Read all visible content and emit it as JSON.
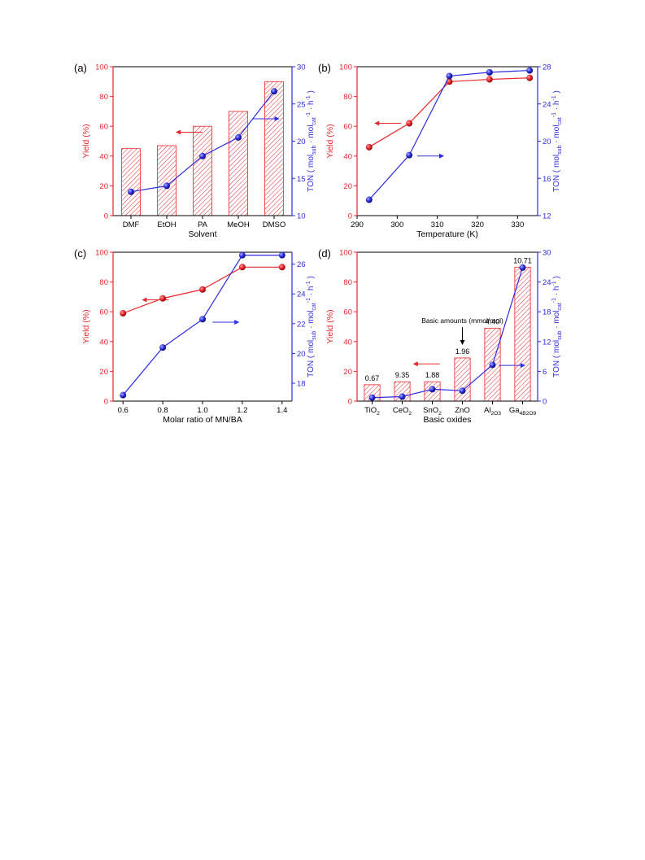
{
  "colors": {
    "yield": "#e8262b",
    "ton": "#2d2de0",
    "axis": "#000000",
    "bar": "#e8262b",
    "background": "#ffffff"
  },
  "chart_data": [
    {
      "panel": "a",
      "type": "bar",
      "panel_label": "(a)",
      "xlabel": "Solvent",
      "ylabel": "Yield (%)",
      "y2label": "TON ( mol_sub · mol_cat^-1 · h^-1 )",
      "categories": [
        "DMF",
        "EtOH",
        "PA",
        "MeOH",
        "DMSO"
      ],
      "ylim": [
        0,
        100
      ],
      "yticks": [
        0,
        20,
        40,
        60,
        80,
        100
      ],
      "y2lim": [
        10,
        30
      ],
      "y2ticks": [
        10,
        15,
        20,
        25,
        30
      ],
      "series": [
        {
          "axis": "left",
          "kind": "bar",
          "values": [
            45,
            47,
            60,
            70,
            90
          ]
        },
        {
          "axis": "right",
          "kind": "line",
          "values": [
            13.2,
            14.0,
            18.0,
            20.5,
            26.7
          ]
        }
      ],
      "arrows": [
        {
          "direction": "left",
          "at_x": 2.0,
          "at_y_axis": "left",
          "at_y": 56
        },
        {
          "direction": "right",
          "at_x": 3.4,
          "at_y_axis": "left",
          "at_y": 65
        }
      ]
    },
    {
      "panel": "b",
      "type": "line",
      "panel_label": "(b)",
      "xlabel": "Temperature (K)",
      "ylabel": "Yield (%)",
      "y2label": "TON ( mol_sub · mol_cat^-1 · h^-1 )",
      "xlim": [
        290,
        335
      ],
      "xticks": [
        290,
        300,
        310,
        320,
        330
      ],
      "ylim": [
        0,
        100
      ],
      "yticks": [
        0,
        20,
        40,
        60,
        80,
        100
      ],
      "y2lim": [
        12,
        28
      ],
      "y2ticks": [
        12,
        16,
        20,
        24,
        28
      ],
      "series": [
        {
          "axis": "left",
          "x": [
            293,
            303,
            313,
            323,
            333
          ],
          "values": [
            46,
            62,
            90,
            91.5,
            92.5
          ]
        },
        {
          "axis": "right",
          "x": [
            293,
            303,
            313,
            323,
            333
          ],
          "values": [
            13.7,
            18.5,
            27.0,
            27.4,
            27.6
          ]
        }
      ],
      "arrows": [
        {
          "direction": "left",
          "at_x": 301,
          "at_y_axis": "left",
          "at_y": 62
        },
        {
          "direction": "right",
          "at_x": 305,
          "at_y_axis": "left",
          "at_y": 40
        }
      ]
    },
    {
      "panel": "c",
      "type": "line",
      "panel_label": "(c)",
      "xlabel": "Molar ratio of MN/BA",
      "ylabel": "Yield (%)",
      "y2label": "TON ( mol_sub · mol_cat^-1 · h^-1 )",
      "xlim": [
        0.55,
        1.45
      ],
      "xticks": [
        "0.6",
        "0.8",
        "1.0",
        "1.2",
        "1.4"
      ],
      "ylim": [
        0,
        100
      ],
      "yticks": [
        0,
        20,
        40,
        60,
        80,
        100
      ],
      "y2lim": [
        16.8,
        26.8
      ],
      "y2ticks": [
        18,
        20,
        22,
        24,
        26
      ],
      "series": [
        {
          "axis": "left",
          "x": [
            0.6,
            0.8,
            1.0,
            1.2,
            1.4
          ],
          "values": [
            59,
            69,
            75,
            90,
            90
          ]
        },
        {
          "axis": "right",
          "x": [
            0.6,
            0.8,
            1.0,
            1.2,
            1.4
          ],
          "values": [
            17.2,
            20.4,
            22.3,
            26.6,
            26.6
          ]
        }
      ],
      "arrows": [
        {
          "direction": "left",
          "at_x": 0.83,
          "at_y_axis": "left",
          "at_y": 68
        },
        {
          "direction": "right",
          "at_x": 1.05,
          "at_y_axis": "left",
          "at_y": 53
        }
      ]
    },
    {
      "panel": "d",
      "type": "bar",
      "panel_label": "(d)",
      "xlabel": "Basic oxides",
      "ylabel": "Yield (%)",
      "y2label": "TON ( mol_sub · mol_cat^-1 · h^-1 )",
      "categories": [
        "TiO_2",
        "CeO_2",
        "SnO_2",
        "ZnO",
        "Al_2O_3",
        "Ga_4B_2O_9"
      ],
      "ylim": [
        0,
        100
      ],
      "yticks": [
        0,
        20,
        40,
        60,
        80,
        100
      ],
      "y2lim": [
        0,
        30
      ],
      "y2ticks": [
        0,
        6,
        12,
        18,
        24,
        30
      ],
      "series": [
        {
          "axis": "left",
          "kind": "bar",
          "values": [
            11,
            13,
            13,
            29,
            49,
            90
          ]
        },
        {
          "axis": "right",
          "kind": "line",
          "values": [
            0.7,
            0.9,
            2.4,
            2.1,
            7.3,
            26.9
          ]
        }
      ],
      "bar_labels": [
        "0.67",
        "9.35",
        "1.88",
        "1.96",
        "4.40",
        "10.71"
      ],
      "annotation": "Basic amounts (mmol/mol)",
      "arrows": [
        {
          "direction": "left",
          "at_x": 2.25,
          "at_y_axis": "left",
          "at_y": 25
        },
        {
          "direction": "right",
          "at_x": 4.2,
          "at_y_axis": "left",
          "at_y": 24
        }
      ]
    }
  ]
}
